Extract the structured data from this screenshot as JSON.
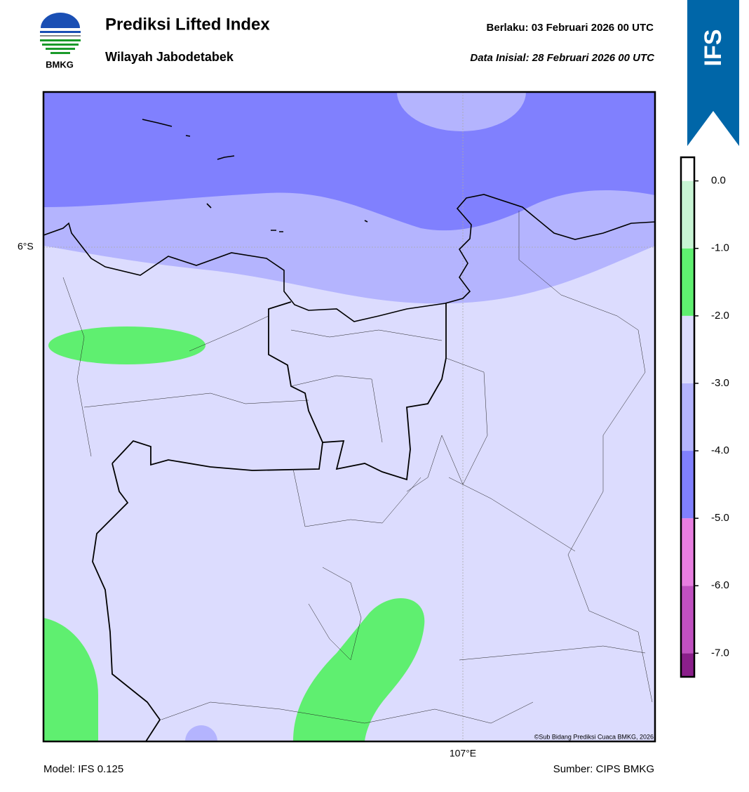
{
  "header": {
    "title": "Prediksi Lifted Index",
    "subtitle": "Wilayah Jabodetabek",
    "valid": "Berlaku:  03 Februari 2026 00 UTC",
    "init": "Data Inisial:  28 Februari 2026 00 UTC",
    "logo_text": "BMKG",
    "badge": "IFS"
  },
  "map": {
    "lat_label": "6°S",
    "lon_label": "107°E",
    "credit": "©Sub Bidang Prediksi Cuaca BMKG, 2026"
  },
  "colorbar": {
    "lim": [
      -7.35,
      0.35
    ],
    "bounds": [
      -7.35,
      -7,
      -6,
      -5,
      -4,
      -3,
      -2,
      -1,
      0,
      0.35
    ],
    "colors": [
      "#8a1f8a",
      "#c050c0",
      "#e87ee0",
      "#8080fe",
      "#b4b4fe",
      "#dcdcfe",
      "#5fef70",
      "#c8f5d4",
      "#ffffff"
    ],
    "ticks": [
      {
        "value": 0,
        "label": "0.0"
      },
      {
        "value": -1,
        "label": "-1.0"
      },
      {
        "value": -2,
        "label": "-2.0"
      },
      {
        "value": -3,
        "label": "-3.0"
      },
      {
        "value": -4,
        "label": "-4.0"
      },
      {
        "value": -5,
        "label": "-5.0"
      },
      {
        "value": -6,
        "label": "-6.0"
      },
      {
        "value": -7,
        "label": "-7.0"
      }
    ]
  },
  "footer": {
    "model": "Model: IFS 0.125",
    "source": "Sumber: CIPS BMKG"
  }
}
